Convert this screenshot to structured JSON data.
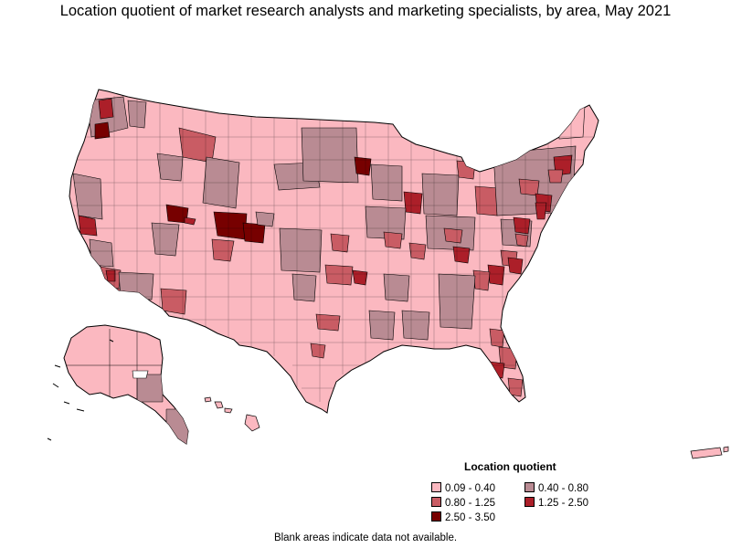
{
  "title": "Location quotient of market research analysts and marketing specialists, by area, May 2021",
  "colors": {
    "background": "#ffffff",
    "boundary": "#000000",
    "bin_1": "#fbb8c0",
    "bin_2": "#b98b93",
    "bin_3": "#c95c64",
    "bin_4": "#ac1f29",
    "bin_5": "#770000"
  },
  "legend": {
    "title": "Location quotient",
    "items": [
      {
        "label": "0.09 - 0.40",
        "color": "#fbb8c0"
      },
      {
        "label": "0.40 - 0.80",
        "color": "#b98b93"
      },
      {
        "label": "0.80 - 1.25",
        "color": "#c95c64"
      },
      {
        "label": "1.25 - 2.50",
        "color": "#ac1f29"
      },
      {
        "label": "2.50 - 3.50",
        "color": "#770000"
      }
    ]
  },
  "footnote": "Blank areas indicate data not available."
}
